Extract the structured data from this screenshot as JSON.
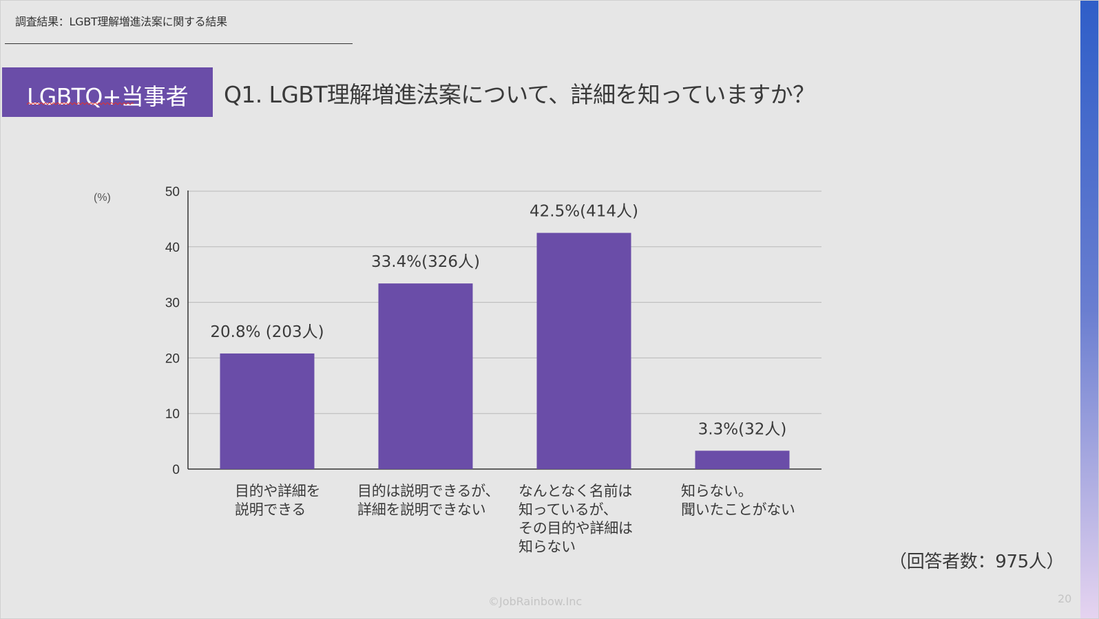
{
  "header": {
    "breadcrumb": "調査結果：LGBT理解増進法案に関する結果",
    "badge": "LGBTQ+当事者",
    "question": "Q1. LGBT理解増進法案について、詳細を知っていますか？"
  },
  "colors": {
    "bar": "#6a4da8",
    "badge": "#6a4da8",
    "grid": "#b8b8b8",
    "axis": "#333333"
  },
  "chart_data": {
    "type": "bar",
    "title": "Q1. LGBT理解増進法案について、詳細を知っていますか？",
    "ylabel": "(%)",
    "ylim": [
      0,
      50
    ],
    "yticks": [
      0,
      10,
      20,
      30,
      40,
      50
    ],
    "grid": true,
    "categories": [
      [
        "目的や詳細を",
        "説明できる"
      ],
      [
        "目的は説明できるが、",
        "詳細を説明できない"
      ],
      [
        "なんとなく名前は",
        "知っているが、",
        "その目的や詳細は",
        "知らない"
      ],
      [
        "知らない。",
        "聞いたことがない"
      ]
    ],
    "values": [
      20.8,
      33.4,
      42.5,
      3.3
    ],
    "data_labels": [
      "20.8% (203人)",
      "33.4%(326人)",
      "42.5%(414人)",
      "3.3%(32人)"
    ]
  },
  "footer": {
    "respondents": "（回答者数：975人）",
    "copyright": "©JobRainbow.Inc",
    "page_number": "20"
  }
}
